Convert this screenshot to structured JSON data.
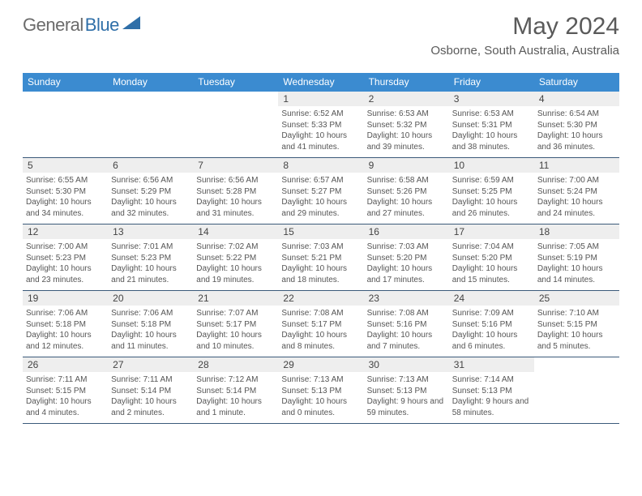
{
  "brand": {
    "part1": "General",
    "part2": "Blue"
  },
  "title": {
    "month": "May 2024",
    "location": "Osborne, South Australia, Australia"
  },
  "colors": {
    "accent": "#3b8bd0",
    "row_divider": "#3b5a7a",
    "daynum_bg": "#eeeeee",
    "background": "#ffffff",
    "text": "#333333"
  },
  "calendar": {
    "days_of_week": [
      "Sunday",
      "Monday",
      "Tuesday",
      "Wednesday",
      "Thursday",
      "Friday",
      "Saturday"
    ],
    "first_weekday_index": 3,
    "days": [
      {
        "n": 1,
        "sunrise": "6:52 AM",
        "sunset": "5:33 PM",
        "daylight": "10 hours and 41 minutes."
      },
      {
        "n": 2,
        "sunrise": "6:53 AM",
        "sunset": "5:32 PM",
        "daylight": "10 hours and 39 minutes."
      },
      {
        "n": 3,
        "sunrise": "6:53 AM",
        "sunset": "5:31 PM",
        "daylight": "10 hours and 38 minutes."
      },
      {
        "n": 4,
        "sunrise": "6:54 AM",
        "sunset": "5:30 PM",
        "daylight": "10 hours and 36 minutes."
      },
      {
        "n": 5,
        "sunrise": "6:55 AM",
        "sunset": "5:30 PM",
        "daylight": "10 hours and 34 minutes."
      },
      {
        "n": 6,
        "sunrise": "6:56 AM",
        "sunset": "5:29 PM",
        "daylight": "10 hours and 32 minutes."
      },
      {
        "n": 7,
        "sunrise": "6:56 AM",
        "sunset": "5:28 PM",
        "daylight": "10 hours and 31 minutes."
      },
      {
        "n": 8,
        "sunrise": "6:57 AM",
        "sunset": "5:27 PM",
        "daylight": "10 hours and 29 minutes."
      },
      {
        "n": 9,
        "sunrise": "6:58 AM",
        "sunset": "5:26 PM",
        "daylight": "10 hours and 27 minutes."
      },
      {
        "n": 10,
        "sunrise": "6:59 AM",
        "sunset": "5:25 PM",
        "daylight": "10 hours and 26 minutes."
      },
      {
        "n": 11,
        "sunrise": "7:00 AM",
        "sunset": "5:24 PM",
        "daylight": "10 hours and 24 minutes."
      },
      {
        "n": 12,
        "sunrise": "7:00 AM",
        "sunset": "5:23 PM",
        "daylight": "10 hours and 23 minutes."
      },
      {
        "n": 13,
        "sunrise": "7:01 AM",
        "sunset": "5:23 PM",
        "daylight": "10 hours and 21 minutes."
      },
      {
        "n": 14,
        "sunrise": "7:02 AM",
        "sunset": "5:22 PM",
        "daylight": "10 hours and 19 minutes."
      },
      {
        "n": 15,
        "sunrise": "7:03 AM",
        "sunset": "5:21 PM",
        "daylight": "10 hours and 18 minutes."
      },
      {
        "n": 16,
        "sunrise": "7:03 AM",
        "sunset": "5:20 PM",
        "daylight": "10 hours and 17 minutes."
      },
      {
        "n": 17,
        "sunrise": "7:04 AM",
        "sunset": "5:20 PM",
        "daylight": "10 hours and 15 minutes."
      },
      {
        "n": 18,
        "sunrise": "7:05 AM",
        "sunset": "5:19 PM",
        "daylight": "10 hours and 14 minutes."
      },
      {
        "n": 19,
        "sunrise": "7:06 AM",
        "sunset": "5:18 PM",
        "daylight": "10 hours and 12 minutes."
      },
      {
        "n": 20,
        "sunrise": "7:06 AM",
        "sunset": "5:18 PM",
        "daylight": "10 hours and 11 minutes."
      },
      {
        "n": 21,
        "sunrise": "7:07 AM",
        "sunset": "5:17 PM",
        "daylight": "10 hours and 10 minutes."
      },
      {
        "n": 22,
        "sunrise": "7:08 AM",
        "sunset": "5:17 PM",
        "daylight": "10 hours and 8 minutes."
      },
      {
        "n": 23,
        "sunrise": "7:08 AM",
        "sunset": "5:16 PM",
        "daylight": "10 hours and 7 minutes."
      },
      {
        "n": 24,
        "sunrise": "7:09 AM",
        "sunset": "5:16 PM",
        "daylight": "10 hours and 6 minutes."
      },
      {
        "n": 25,
        "sunrise": "7:10 AM",
        "sunset": "5:15 PM",
        "daylight": "10 hours and 5 minutes."
      },
      {
        "n": 26,
        "sunrise": "7:11 AM",
        "sunset": "5:15 PM",
        "daylight": "10 hours and 4 minutes."
      },
      {
        "n": 27,
        "sunrise": "7:11 AM",
        "sunset": "5:14 PM",
        "daylight": "10 hours and 2 minutes."
      },
      {
        "n": 28,
        "sunrise": "7:12 AM",
        "sunset": "5:14 PM",
        "daylight": "10 hours and 1 minute."
      },
      {
        "n": 29,
        "sunrise": "7:13 AM",
        "sunset": "5:13 PM",
        "daylight": "10 hours and 0 minutes."
      },
      {
        "n": 30,
        "sunrise": "7:13 AM",
        "sunset": "5:13 PM",
        "daylight": "9 hours and 59 minutes."
      },
      {
        "n": 31,
        "sunrise": "7:14 AM",
        "sunset": "5:13 PM",
        "daylight": "9 hours and 58 minutes."
      }
    ],
    "labels": {
      "sunrise": "Sunrise:",
      "sunset": "Sunset:",
      "daylight": "Daylight:"
    }
  }
}
